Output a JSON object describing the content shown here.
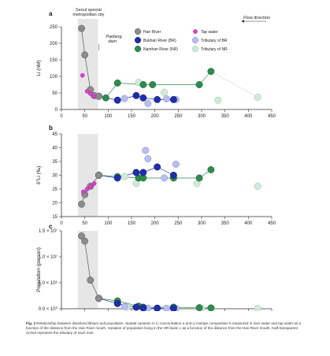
{
  "chart_data": [
    {
      "type": "scatter",
      "panel": "a",
      "xlabel": "",
      "ylabel": "Li (nM)",
      "xlim": [
        0,
        450
      ],
      "ylim": [
        0,
        250
      ],
      "xticks": [
        0,
        50,
        100,
        150,
        200,
        250,
        300,
        350,
        400,
        450
      ],
      "yticks": [
        0,
        50,
        100,
        150,
        200,
        250
      ],
      "annotations": {
        "seoul": "Seoul special metropolitan city",
        "paldang": "Paldang dam",
        "flow": "Flow direction"
      },
      "legend": [
        {
          "key": "hr",
          "label": "Han River"
        },
        {
          "key": "tap",
          "label": "Tap water"
        },
        {
          "key": "br",
          "label": "Bukhan River (BR)"
        },
        {
          "key": "tbr",
          "label": "Tributary of BR"
        },
        {
          "key": "nr",
          "label": "Namhan River (NR)"
        },
        {
          "key": "tnr",
          "label": "Tributary of NR"
        }
      ],
      "series": [
        {
          "name": "Han River",
          "key": "hr",
          "connected": true,
          "points": [
            [
              43,
              245
            ],
            [
              50,
              165
            ],
            [
              62,
              60
            ],
            [
              70,
              42
            ],
            [
              80,
              40
            ]
          ]
        },
        {
          "name": "Tap water",
          "key": "tap",
          "points": [
            [
              45,
              103
            ],
            [
              55,
              55
            ],
            [
              62,
              48
            ],
            [
              70,
              40
            ]
          ]
        },
        {
          "name": "Bukhan River (BR)",
          "key": "br",
          "connected": true,
          "points": [
            [
              80,
              40
            ],
            [
              120,
              28
            ],
            [
              160,
              42
            ],
            [
              175,
              35
            ],
            [
              205,
              30
            ],
            [
              240,
              30
            ]
          ]
        },
        {
          "name": "Tributary of BR",
          "key": "tbr",
          "points": [
            [
              135,
              33
            ],
            [
              185,
              18
            ],
            [
              225,
              32
            ],
            [
              245,
              30
            ]
          ]
        },
        {
          "name": "Namhan River (NR)",
          "key": "nr",
          "connected": true,
          "points": [
            [
              80,
              40
            ],
            [
              95,
              35
            ],
            [
              120,
              80
            ],
            [
              175,
              75
            ],
            [
              195,
              75
            ],
            [
              295,
              75
            ],
            [
              320,
              115
            ]
          ]
        },
        {
          "name": "Tributary of NR",
          "key": "tnr",
          "points": [
            [
              165,
              82
            ],
            [
              220,
              52
            ],
            [
              335,
              28
            ],
            [
              420,
              37
            ]
          ]
        }
      ]
    },
    {
      "type": "scatter",
      "panel": "b",
      "xlabel": "",
      "ylabel": "δ7Li (‰)",
      "xlim": [
        0,
        450
      ],
      "ylim": [
        15,
        45
      ],
      "xticks": [
        0,
        50,
        100,
        150,
        200,
        250,
        300,
        350,
        400,
        450
      ],
      "yticks": [
        15,
        20,
        25,
        30,
        35,
        40,
        45
      ],
      "series": [
        {
          "name": "Han River",
          "key": "hr",
          "connected": true,
          "points": [
            [
              43,
              19.5
            ],
            [
              50,
              23
            ],
            [
              62,
              26
            ],
            [
              80,
              30
            ]
          ]
        },
        {
          "name": "Tap water",
          "key": "tap",
          "points": [
            [
              47,
              24
            ],
            [
              55,
              25
            ],
            [
              63,
              26
            ],
            [
              70,
              27
            ]
          ]
        },
        {
          "name": "Bukhan River (BR)",
          "key": "br",
          "connected": true,
          "points": [
            [
              80,
              30
            ],
            [
              120,
              29
            ],
            [
              160,
              31
            ],
            [
              175,
              31
            ],
            [
              205,
              33
            ],
            [
              240,
              30
            ]
          ]
        },
        {
          "name": "Tributary of BR",
          "key": "tbr",
          "points": [
            [
              180,
              39
            ],
            [
              185,
              36
            ],
            [
              220,
              29
            ],
            [
              245,
              34
            ]
          ]
        },
        {
          "name": "Namhan River (NR)",
          "key": "nr",
          "connected": true,
          "points": [
            [
              80,
              30
            ],
            [
              120,
              29.5
            ],
            [
              165,
              29
            ],
            [
              175,
              29
            ],
            [
              240,
              29
            ],
            [
              295,
              29
            ],
            [
              320,
              32
            ]
          ]
        },
        {
          "name": "Tributary of NR",
          "key": "tnr",
          "points": [
            [
              135,
              29.5
            ],
            [
              160,
              27
            ],
            [
              290,
              27
            ],
            [
              420,
              26
            ]
          ]
        }
      ]
    },
    {
      "type": "scatter",
      "panel": "c",
      "xlabel": "Distance from the HR mouth (km)",
      "ylabel": "Population (person)",
      "xlim": [
        0,
        450
      ],
      "ylim": [
        0,
        15000000
      ],
      "xticks": [
        0,
        50,
        100,
        150,
        200,
        250,
        300,
        350,
        400,
        450
      ],
      "yticks": [
        0,
        5000000,
        10000000,
        15000000
      ],
      "yticklabels": [
        "0.0 × 10⁰",
        "5.0 × 10⁶",
        "1.0 × 10⁷",
        "1.5 × 10⁷"
      ],
      "series": [
        {
          "name": "Han River",
          "key": "hr",
          "connected": true,
          "points": [
            [
              43,
              14000000
            ],
            [
              50,
              13000000
            ],
            [
              62,
              5500000
            ],
            [
              80,
              2000000
            ]
          ]
        },
        {
          "name": "Bukhan River (BR)",
          "key": "br",
          "connected": true,
          "points": [
            [
              80,
              2000000
            ],
            [
              120,
              1000000
            ],
            [
              160,
              300000
            ],
            [
              175,
              150000
            ],
            [
              205,
              120000
            ],
            [
              240,
              80000
            ]
          ]
        },
        {
          "name": "Tributary of BR",
          "key": "tbr",
          "points": [
            [
              135,
              400000
            ],
            [
              185,
              100000
            ],
            [
              225,
              80000
            ],
            [
              245,
              60000
            ]
          ]
        },
        {
          "name": "Namhan River (NR)",
          "key": "nr",
          "connected": true,
          "points": [
            [
              80,
              2000000
            ],
            [
              120,
              1500000
            ],
            [
              165,
              500000
            ],
            [
              175,
              300000
            ],
            [
              240,
              300000
            ],
            [
              295,
              200000
            ],
            [
              320,
              150000
            ]
          ]
        },
        {
          "name": "Tributary of NR",
          "key": "tnr",
          "points": [
            [
              140,
              300000
            ],
            [
              300,
              100000
            ],
            [
              420,
              50000
            ]
          ]
        }
      ]
    }
  ],
  "styles": {
    "hr": {
      "fill": "#8c8c8c",
      "stroke": "#555555",
      "r": 4.2,
      "line": "#555555"
    },
    "tap": {
      "fill": "#d944c9",
      "stroke": "#a0239a",
      "r": 2.6
    },
    "br": {
      "fill": "#1f2fa8",
      "stroke": "#111a6e",
      "r": 4.2,
      "line": "#1f2fa8"
    },
    "tbr": {
      "fill": "#b9bdf0",
      "stroke": "#8187d6",
      "r": 4.2
    },
    "nr": {
      "fill": "#2f8a4e",
      "stroke": "#1b5e33",
      "r": 4.2,
      "line": "#2f8a4e"
    },
    "tnr": {
      "fill": "#d3ead8",
      "stroke": "#8fbf9c",
      "r": 4.2
    }
  },
  "caption": {
    "fig_label": "Fig. 2",
    "text": "Relationship between dissolved lithium and population. Spatial variation in Li concentration a and Li isotope composition b measured in river water and tap water as a function of the distance from the Han River mouth. Variation of population living in the HR basin c as a function of the distance from the Han River mouth. Half-transparent circles represent the tributary of each river."
  }
}
